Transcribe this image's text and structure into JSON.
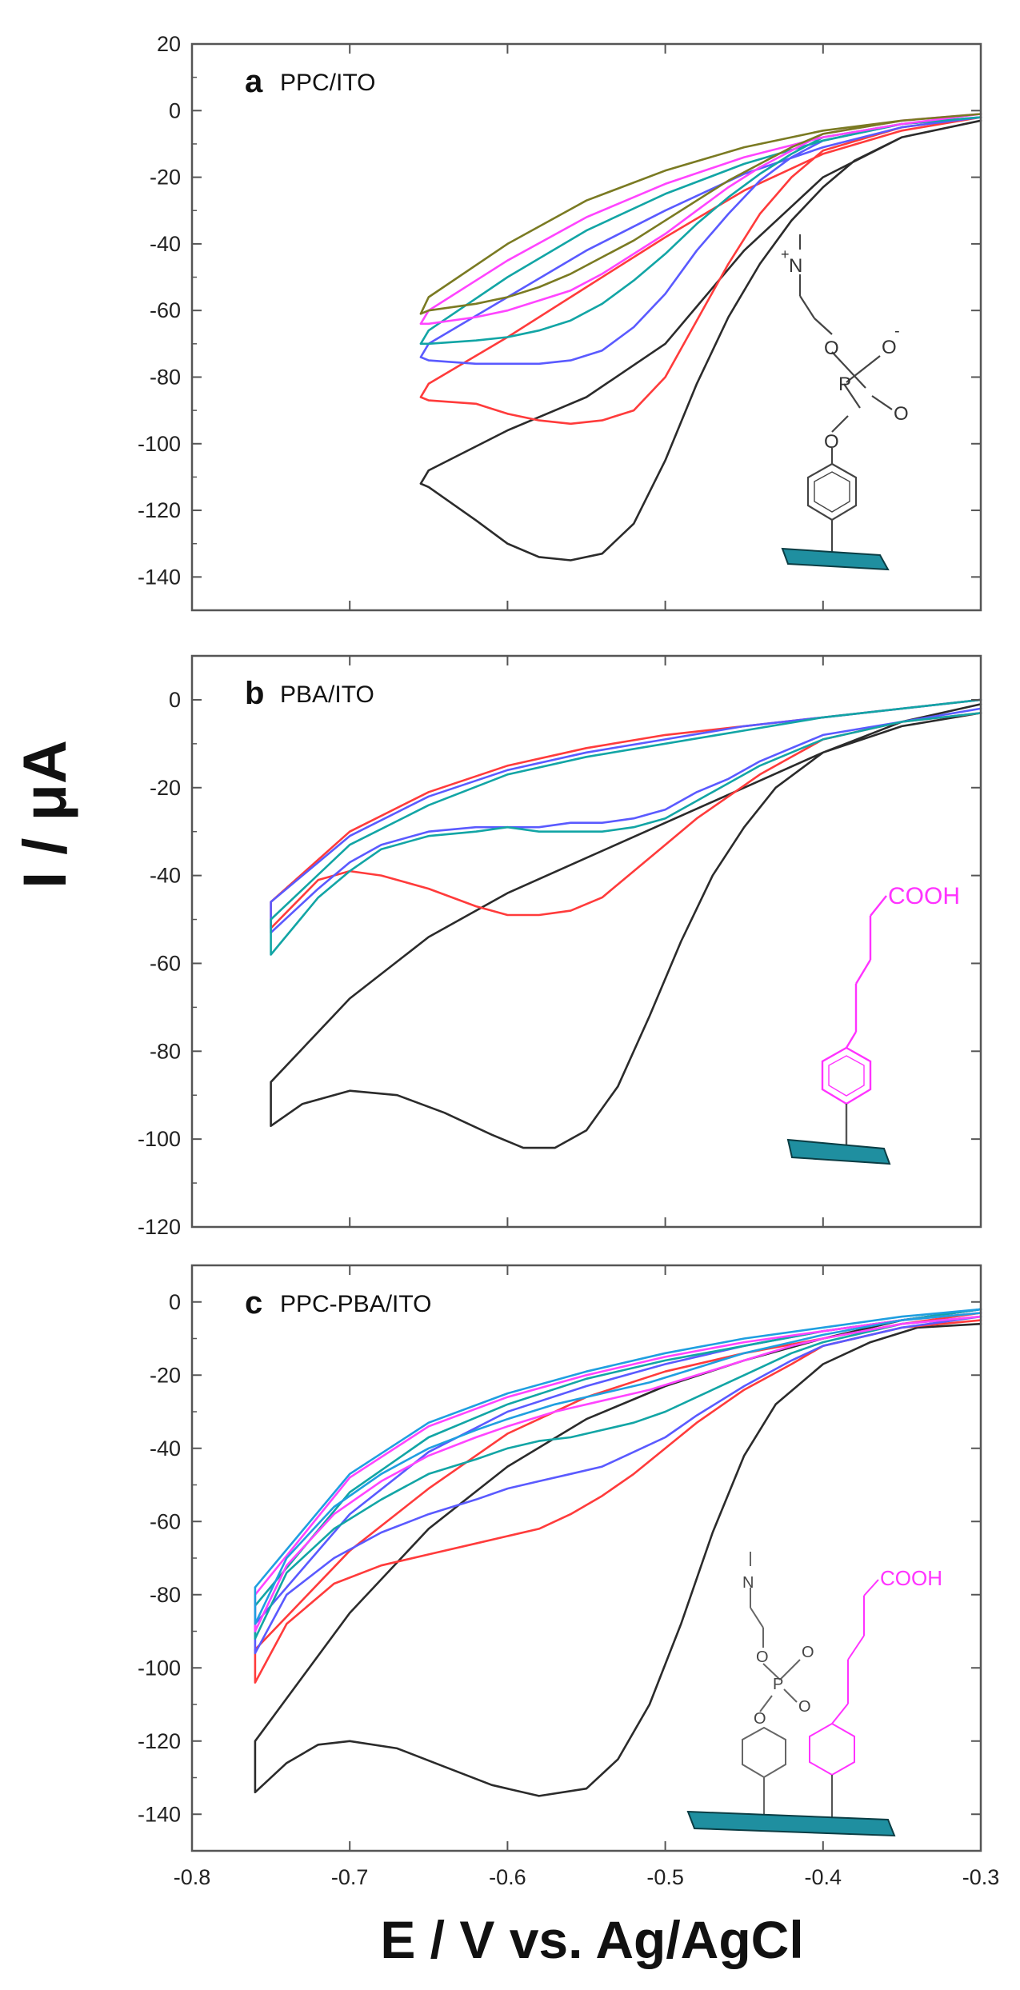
{
  "figure": {
    "ylabel": "I / μA",
    "xlabel": "E / V vs. Ag/AgCl"
  },
  "chart_data": [
    {
      "type": "line",
      "letter": "a",
      "title": "PPC/ITO",
      "xlim": [
        -0.8,
        -0.3
      ],
      "ylim": [
        -150,
        20
      ],
      "yticks": [
        20,
        0,
        -20,
        -40,
        -60,
        -80,
        -100,
        -120,
        -140
      ],
      "grid": false,
      "series": [
        {
          "color": "#2b2b2b",
          "x": [
            -0.3,
            -0.35,
            -0.4,
            -0.45,
            -0.5,
            -0.55,
            -0.6,
            -0.65,
            -0.655,
            -0.65,
            -0.62,
            -0.6,
            -0.58,
            -0.56,
            -0.54,
            -0.52,
            -0.5,
            -0.48,
            -0.46,
            -0.44,
            -0.42,
            -0.4,
            -0.38,
            -0.35,
            -0.32,
            -0.3
          ],
          "y": [
            -3,
            -8,
            -20,
            -42,
            -70,
            -86,
            -96,
            -108,
            -112,
            -113,
            -123,
            -130,
            -134,
            -135,
            -133,
            -124,
            -105,
            -82,
            -62,
            -46,
            -33,
            -23,
            -15,
            -8,
            -5,
            -3
          ]
        },
        {
          "color": "#ff3b3b",
          "x": [
            -0.3,
            -0.35,
            -0.4,
            -0.45,
            -0.5,
            -0.55,
            -0.6,
            -0.65,
            -0.655,
            -0.65,
            -0.62,
            -0.6,
            -0.58,
            -0.56,
            -0.54,
            -0.52,
            -0.5,
            -0.48,
            -0.46,
            -0.44,
            -0.42,
            -0.4,
            -0.35,
            -0.3
          ],
          "y": [
            -2,
            -6,
            -13,
            -24,
            -38,
            -53,
            -68,
            -82,
            -86,
            -87,
            -88,
            -91,
            -93,
            -94,
            -93,
            -90,
            -80,
            -63,
            -46,
            -31,
            -20,
            -12,
            -5,
            -2
          ]
        },
        {
          "color": "#5a5aff",
          "x": [
            -0.3,
            -0.35,
            -0.4,
            -0.45,
            -0.5,
            -0.55,
            -0.6,
            -0.65,
            -0.655,
            -0.65,
            -0.62,
            -0.6,
            -0.58,
            -0.56,
            -0.54,
            -0.52,
            -0.5,
            -0.48,
            -0.46,
            -0.44,
            -0.42,
            -0.4,
            -0.35,
            -0.3
          ],
          "y": [
            -2,
            -5,
            -11,
            -19,
            -30,
            -42,
            -56,
            -70,
            -74,
            -75,
            -76,
            -76,
            -76,
            -75,
            -72,
            -65,
            -55,
            -42,
            -31,
            -21,
            -14,
            -9,
            -4,
            -2
          ]
        },
        {
          "color": "#12a5a5",
          "x": [
            -0.3,
            -0.35,
            -0.4,
            -0.45,
            -0.5,
            -0.55,
            -0.6,
            -0.65,
            -0.655,
            -0.65,
            -0.62,
            -0.6,
            -0.58,
            -0.56,
            -0.54,
            -0.52,
            -0.5,
            -0.48,
            -0.46,
            -0.44,
            -0.42,
            -0.4,
            -0.35,
            -0.3
          ],
          "y": [
            -2,
            -4,
            -9,
            -16,
            -25,
            -36,
            -50,
            -66,
            -70,
            -70,
            -69,
            -68,
            -66,
            -63,
            -58,
            -51,
            -43,
            -34,
            -26,
            -19,
            -13,
            -8,
            -4,
            -2
          ]
        },
        {
          "color": "#ff44ff",
          "x": [
            -0.3,
            -0.35,
            -0.4,
            -0.45,
            -0.5,
            -0.55,
            -0.6,
            -0.65,
            -0.655,
            -0.65,
            -0.62,
            -0.6,
            -0.58,
            -0.56,
            -0.54,
            -0.52,
            -0.5,
            -0.48,
            -0.46,
            -0.44,
            -0.42,
            -0.4,
            -0.35,
            -0.3
          ],
          "y": [
            -1,
            -4,
            -8,
            -14,
            -22,
            -32,
            -45,
            -60,
            -64,
            -64,
            -62,
            -60,
            -57,
            -54,
            -49,
            -43,
            -37,
            -30,
            -23,
            -17,
            -12,
            -7,
            -3,
            -1
          ]
        },
        {
          "color": "#7a7a22",
          "x": [
            -0.3,
            -0.35,
            -0.4,
            -0.45,
            -0.5,
            -0.55,
            -0.6,
            -0.65,
            -0.655,
            -0.65,
            -0.62,
            -0.6,
            -0.58,
            -0.56,
            -0.54,
            -0.52,
            -0.5,
            -0.48,
            -0.46,
            -0.44,
            -0.42,
            -0.4,
            -0.35,
            -0.3
          ],
          "y": [
            -1,
            -3,
            -6,
            -11,
            -18,
            -27,
            -40,
            -56,
            -61,
            -60,
            -58,
            -56,
            -53,
            -49,
            -44,
            -39,
            -33,
            -27,
            -21,
            -16,
            -11,
            -7,
            -3,
            -1
          ]
        }
      ]
    },
    {
      "type": "line",
      "letter": "b",
      "title": "PBA/ITO",
      "xlim": [
        -0.8,
        -0.3
      ],
      "ylim": [
        -120,
        10
      ],
      "yticks": [
        0,
        -20,
        -40,
        -60,
        -80,
        -100,
        -120
      ],
      "grid": false,
      "series": [
        {
          "color": "#2b2b2b",
          "x": [
            -0.3,
            -0.35,
            -0.4,
            -0.45,
            -0.5,
            -0.55,
            -0.6,
            -0.65,
            -0.7,
            -0.75,
            -0.75,
            -0.73,
            -0.7,
            -0.67,
            -0.64,
            -0.61,
            -0.59,
            -0.57,
            -0.55,
            -0.53,
            -0.51,
            -0.49,
            -0.47,
            -0.45,
            -0.43,
            -0.4,
            -0.35,
            -0.3
          ],
          "y": [
            -1,
            -5,
            -12,
            -20,
            -28,
            -36,
            -44,
            -54,
            -68,
            -87,
            -97,
            -92,
            -89,
            -90,
            -94,
            -99,
            -102,
            -102,
            -98,
            -88,
            -72,
            -55,
            -40,
            -29,
            -20,
            -12,
            -6,
            -3
          ]
        },
        {
          "color": "#ff3b3b",
          "x": [
            -0.3,
            -0.35,
            -0.4,
            -0.45,
            -0.5,
            -0.55,
            -0.6,
            -0.65,
            -0.7,
            -0.75,
            -0.75,
            -0.72,
            -0.7,
            -0.68,
            -0.65,
            -0.62,
            -0.6,
            -0.58,
            -0.56,
            -0.54,
            -0.52,
            -0.5,
            -0.48,
            -0.46,
            -0.44,
            -0.42,
            -0.4,
            -0.35,
            -0.3
          ],
          "y": [
            0,
            -2,
            -4,
            -6,
            -8,
            -11,
            -15,
            -21,
            -30,
            -46,
            -52,
            -41,
            -39,
            -40,
            -43,
            -47,
            -49,
            -49,
            -48,
            -45,
            -39,
            -33,
            -27,
            -22,
            -17,
            -13,
            -9,
            -5,
            -3
          ]
        },
        {
          "color": "#5a5aff",
          "x": [
            -0.3,
            -0.35,
            -0.4,
            -0.45,
            -0.5,
            -0.55,
            -0.6,
            -0.65,
            -0.7,
            -0.75,
            -0.75,
            -0.72,
            -0.7,
            -0.68,
            -0.65,
            -0.62,
            -0.6,
            -0.58,
            -0.56,
            -0.54,
            -0.52,
            -0.5,
            -0.48,
            -0.46,
            -0.44,
            -0.42,
            -0.4,
            -0.35,
            -0.3
          ],
          "y": [
            0,
            -2,
            -4,
            -6,
            -9,
            -12,
            -16,
            -22,
            -31,
            -46,
            -53,
            -43,
            -37,
            -33,
            -30,
            -29,
            -29,
            -29,
            -28,
            -28,
            -27,
            -25,
            -21,
            -18,
            -14,
            -11,
            -8,
            -5,
            -2
          ]
        },
        {
          "color": "#12a5a5",
          "x": [
            -0.3,
            -0.35,
            -0.4,
            -0.45,
            -0.5,
            -0.55,
            -0.6,
            -0.65,
            -0.7,
            -0.75,
            -0.75,
            -0.72,
            -0.7,
            -0.68,
            -0.65,
            -0.62,
            -0.6,
            -0.58,
            -0.56,
            -0.54,
            -0.52,
            -0.5,
            -0.48,
            -0.46,
            -0.44,
            -0.42,
            -0.4,
            -0.35,
            -0.3
          ],
          "y": [
            0,
            -2,
            -4,
            -7,
            -10,
            -13,
            -17,
            -24,
            -33,
            -50,
            -58,
            -45,
            -39,
            -34,
            -31,
            -30,
            -29,
            -30,
            -30,
            -30,
            -29,
            -27,
            -23,
            -19,
            -15,
            -12,
            -9,
            -5,
            -3
          ]
        }
      ]
    },
    {
      "type": "line",
      "letter": "c",
      "title": "PPC-PBA/ITO",
      "xlim": [
        -0.8,
        -0.3
      ],
      "ylim": [
        -150,
        10
      ],
      "yticks": [
        0,
        -20,
        -40,
        -60,
        -80,
        -100,
        -120,
        -140
      ],
      "grid": false,
      "xticks": [
        -0.8,
        -0.7,
        -0.6,
        -0.5,
        -0.4,
        -0.3
      ],
      "xticklabels": [
        "-0.8",
        "-0.7",
        "-0.6",
        "-0.5",
        "-0.4",
        "-0.3"
      ],
      "series": [
        {
          "color": "#2b2b2b",
          "x": [
            -0.3,
            -0.35,
            -0.4,
            -0.45,
            -0.5,
            -0.55,
            -0.6,
            -0.65,
            -0.7,
            -0.76,
            -0.76,
            -0.74,
            -0.72,
            -0.7,
            -0.67,
            -0.64,
            -0.61,
            -0.58,
            -0.55,
            -0.53,
            -0.51,
            -0.49,
            -0.47,
            -0.45,
            -0.43,
            -0.4,
            -0.37,
            -0.34,
            -0.3
          ],
          "y": [
            -2,
            -5,
            -10,
            -16,
            -23,
            -32,
            -45,
            -62,
            -85,
            -120,
            -134,
            -126,
            -121,
            -120,
            -122,
            -127,
            -132,
            -135,
            -133,
            -125,
            -110,
            -88,
            -63,
            -42,
            -28,
            -17,
            -11,
            -7,
            -6
          ]
        },
        {
          "color": "#ff3b3b",
          "x": [
            -0.3,
            -0.35,
            -0.4,
            -0.45,
            -0.5,
            -0.55,
            -0.6,
            -0.65,
            -0.7,
            -0.76,
            -0.76,
            -0.74,
            -0.71,
            -0.68,
            -0.65,
            -0.62,
            -0.6,
            -0.58,
            -0.56,
            -0.54,
            -0.52,
            -0.5,
            -0.48,
            -0.45,
            -0.42,
            -0.4,
            -0.35,
            -0.3
          ],
          "y": [
            -3,
            -6,
            -10,
            -14,
            -19,
            -26,
            -36,
            -51,
            -68,
            -95,
            -104,
            -88,
            -77,
            -72,
            -69,
            -66,
            -64,
            -62,
            -58,
            -53,
            -47,
            -40,
            -33,
            -24,
            -17,
            -12,
            -7,
            -5
          ]
        },
        {
          "color": "#5a5aff",
          "x": [
            -0.3,
            -0.35,
            -0.4,
            -0.45,
            -0.5,
            -0.55,
            -0.6,
            -0.65,
            -0.7,
            -0.76,
            -0.76,
            -0.74,
            -0.71,
            -0.68,
            -0.65,
            -0.62,
            -0.6,
            -0.58,
            -0.56,
            -0.54,
            -0.52,
            -0.5,
            -0.48,
            -0.45,
            -0.42,
            -0.4,
            -0.35,
            -0.3
          ],
          "y": [
            -2,
            -5,
            -8,
            -12,
            -17,
            -23,
            -30,
            -41,
            -58,
            -88,
            -96,
            -80,
            -70,
            -63,
            -58,
            -54,
            -51,
            -49,
            -47,
            -45,
            -41,
            -37,
            -31,
            -23,
            -16,
            -12,
            -7,
            -4
          ]
        },
        {
          "color": "#12a5a5",
          "x": [
            -0.3,
            -0.35,
            -0.4,
            -0.45,
            -0.5,
            -0.55,
            -0.6,
            -0.65,
            -0.7,
            -0.76,
            -0.76,
            -0.74,
            -0.71,
            -0.68,
            -0.65,
            -0.62,
            -0.6,
            -0.58,
            -0.56,
            -0.54,
            -0.52,
            -0.5,
            -0.48,
            -0.45,
            -0.42,
            -0.4,
            -0.35,
            -0.3
          ],
          "y": [
            -2,
            -5,
            -8,
            -12,
            -16,
            -21,
            -28,
            -37,
            -52,
            -83,
            -92,
            -74,
            -62,
            -54,
            -47,
            -43,
            -40,
            -38,
            -37,
            -35,
            -33,
            -30,
            -26,
            -20,
            -14,
            -11,
            -6,
            -4
          ]
        },
        {
          "color": "#ff44ff",
          "x": [
            -0.3,
            -0.35,
            -0.4,
            -0.45,
            -0.5,
            -0.55,
            -0.6,
            -0.65,
            -0.7,
            -0.76,
            -0.76,
            -0.74,
            -0.71,
            -0.68,
            -0.65,
            -0.62,
            -0.6,
            -0.57,
            -0.54,
            -0.51,
            -0.48,
            -0.45,
            -0.42,
            -0.4,
            -0.35,
            -0.3
          ],
          "y": [
            -3,
            -5,
            -8,
            -11,
            -15,
            -20,
            -26,
            -34,
            -48,
            -80,
            -90,
            -72,
            -58,
            -49,
            -42,
            -37,
            -34,
            -30,
            -27,
            -24,
            -20,
            -16,
            -12,
            -10,
            -6,
            -4
          ]
        },
        {
          "color": "#1f9fe0",
          "x": [
            -0.3,
            -0.35,
            -0.4,
            -0.45,
            -0.5,
            -0.55,
            -0.6,
            -0.65,
            -0.7,
            -0.76,
            -0.76,
            -0.74,
            -0.71,
            -0.68,
            -0.65,
            -0.62,
            -0.6,
            -0.57,
            -0.54,
            -0.51,
            -0.48,
            -0.45,
            -0.42,
            -0.4,
            -0.35,
            -0.3
          ],
          "y": [
            -2,
            -4,
            -7,
            -10,
            -14,
            -19,
            -25,
            -33,
            -47,
            -78,
            -88,
            -70,
            -56,
            -47,
            -40,
            -35,
            -32,
            -28,
            -25,
            -22,
            -18,
            -14,
            -11,
            -9,
            -5,
            -3
          ]
        }
      ]
    }
  ],
  "structures": {
    "ppc_atom_n": "N",
    "ppc_atom_p": "P",
    "ppc_atom_o": "O",
    "ppc_charge_plus": "+",
    "ppc_charge_minus": "-",
    "pba_group": "COOH"
  }
}
